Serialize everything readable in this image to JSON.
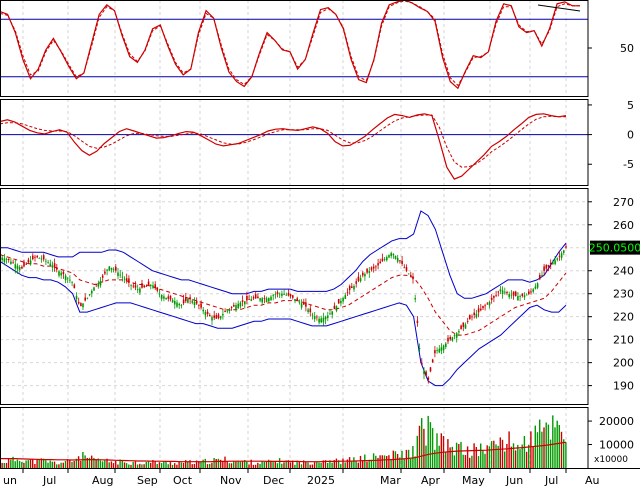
{
  "chart_data": {
    "type": "stock_technical_chart",
    "x_axis": {
      "labels": [
        "un",
        "Jul",
        "Aug",
        "Sep",
        "Oct",
        "Nov",
        "Dec",
        "2025",
        "Mar",
        "Apr",
        "May",
        "Jun",
        "Jul",
        "Au"
      ]
    },
    "panels": [
      {
        "id": "stochastic",
        "type": "line",
        "y_ticks": [
          "50"
        ],
        "ylim": [
          0,
          100
        ],
        "levels": [
          80,
          20
        ],
        "series": [
          {
            "role": "oscillator",
            "color": "#cc0000",
            "values": [
              88,
              85,
              66,
              38,
              18,
              28,
              48,
              60,
              46,
              31,
              18,
              24,
              55,
              85,
              95,
              89,
              63,
              41,
              35,
              48,
              70,
              74,
              52,
              33,
              22,
              28,
              66,
              89,
              81,
              50,
              25,
              15,
              10,
              20,
              45,
              66,
              58,
              48,
              46,
              28,
              38,
              65,
              90,
              92,
              85,
              70,
              38,
              17,
              14,
              38,
              76,
              95,
              98,
              100,
              97,
              92,
              88,
              78,
              40,
              15,
              8,
              26,
              42,
              40,
              46,
              78,
              96,
              94,
              72,
              66,
              68,
              52,
              70,
              96,
              98,
              94,
              94
            ]
          },
          {
            "role": "signal",
            "color": "#cc0000",
            "style": "dashed",
            "values": [
              86,
              84,
              68,
              42,
              22,
              26,
              46,
              58,
              47,
              33,
              20,
              24,
              52,
              82,
              93,
              89,
              65,
              44,
              36,
              47,
              68,
              73,
              54,
              35,
              24,
              28,
              63,
              86,
              81,
              53,
              28,
              17,
              12,
              20,
              43,
              64,
              58,
              49,
              46,
              30,
              38,
              62,
              87,
              91,
              85,
              71,
              41,
              20,
              16,
              37,
              73,
              93,
              97,
              99,
              97,
              93,
              88,
              80,
              44,
              19,
              11,
              25,
              40,
              41,
              46,
              75,
              93,
              93,
              74,
              67,
              68,
              54,
              68,
              93,
              96,
              94,
              94
            ]
          }
        ]
      },
      {
        "id": "macd",
        "type": "line",
        "y_ticks": [
          "5",
          "0",
          "-5"
        ],
        "ylim": [
          -8.5,
          6
        ],
        "levels": [
          0
        ],
        "series": [
          {
            "role": "macd",
            "color": "#cc0000",
            "values": [
              2.2,
              2.5,
              2.1,
              1.4,
              0.7,
              0.3,
              0.1,
              0.5,
              0.8,
              0.4,
              -1.3,
              -2.7,
              -3.5,
              -2.8,
              -1.5,
              -0.5,
              0.5,
              1.0,
              0.6,
              0.2,
              -0.2,
              -0.6,
              -0.5,
              -0.2,
              0.2,
              0.5,
              0.4,
              -0.2,
              -0.9,
              -1.6,
              -1.9,
              -1.7,
              -1.5,
              -1.0,
              -0.5,
              0.0,
              0.6,
              0.9,
              1.0,
              0.8,
              0.7,
              1.0,
              1.3,
              1.0,
              0.2,
              -1.2,
              -1.9,
              -1.8,
              -1.1,
              -0.3,
              0.8,
              1.8,
              2.8,
              3.4,
              3.2,
              2.9,
              3.3,
              3.5,
              3.2,
              -1.0,
              -5.5,
              -7.5,
              -7.0,
              -5.8,
              -4.6,
              -3.4,
              -2.0,
              -1.2,
              -0.3,
              0.8,
              1.8,
              2.9,
              3.4,
              3.5,
              3.2,
              3.0,
              3.2
            ]
          },
          {
            "role": "signal",
            "color": "#cc0000",
            "style": "dashed",
            "values": [
              1.8,
              2.0,
              2.0,
              1.8,
              1.4,
              1.0,
              0.7,
              0.6,
              0.6,
              0.5,
              -0.2,
              -1.1,
              -2.0,
              -2.3,
              -2.1,
              -1.6,
              -0.9,
              -0.2,
              0.2,
              0.2,
              0.0,
              -0.2,
              -0.3,
              -0.3,
              -0.1,
              0.1,
              0.3,
              0.1,
              -0.4,
              -0.9,
              -1.4,
              -1.6,
              -1.6,
              -1.3,
              -0.9,
              -0.4,
              0.1,
              0.5,
              0.8,
              0.8,
              0.8,
              0.8,
              1.0,
              1.0,
              0.7,
              -0.1,
              -0.9,
              -1.4,
              -1.4,
              -1.0,
              -0.3,
              0.6,
              1.5,
              2.3,
              2.8,
              3.0,
              3.2,
              3.3,
              3.3,
              1.2,
              -2.1,
              -4.6,
              -5.5,
              -5.4,
              -4.9,
              -4.0,
              -2.9,
              -2.1,
              -1.2,
              -0.2,
              0.8,
              1.8,
              2.6,
              3.0,
              3.1,
              3.0,
              3.0
            ]
          }
        ]
      },
      {
        "id": "price",
        "type": "candlestick",
        "y_ticks": [
          "270",
          "260",
          "250",
          "240",
          "230",
          "220",
          "210",
          "200",
          "190"
        ],
        "ylim": [
          182,
          276
        ],
        "last_price_label": "250.0500",
        "close": [
          246,
          245,
          243,
          241,
          244,
          246,
          245,
          243,
          240,
          238,
          235,
          224,
          228,
          233,
          236,
          242,
          240,
          237,
          234,
          232,
          233,
          234,
          230,
          228,
          227,
          225,
          228,
          226,
          223,
          220,
          219,
          222,
          224,
          226,
          227,
          228,
          228,
          228,
          230,
          230,
          229,
          227,
          225,
          221,
          219,
          220,
          223,
          227,
          231,
          234,
          238,
          240,
          242,
          245,
          248,
          245,
          240,
          236,
          200,
          192,
          205,
          207,
          210,
          213,
          216,
          220,
          222,
          225,
          228,
          232,
          230,
          229,
          229,
          230,
          234,
          240,
          243,
          246,
          250
        ],
        "ma": [
          247,
          246,
          245,
          244,
          243,
          243,
          242,
          242,
          241,
          240,
          239,
          236,
          235,
          234,
          235,
          236,
          236,
          236,
          235,
          234,
          234,
          233,
          232,
          231,
          230,
          229,
          228,
          227,
          226,
          225,
          224,
          223,
          223,
          223,
          224,
          225,
          225,
          226,
          226,
          227,
          227,
          227,
          226,
          225,
          224,
          223,
          223,
          224,
          225,
          227,
          229,
          231,
          233,
          235,
          237,
          238,
          238,
          237,
          233,
          228,
          222,
          218,
          214,
          212,
          212,
          213,
          214,
          216,
          218,
          220,
          222,
          224,
          225,
          226,
          227,
          228,
          231,
          235,
          239
        ],
        "bb_upper": [
          250,
          250,
          249,
          248,
          248,
          248,
          248,
          247,
          246,
          246,
          246,
          248,
          248,
          248,
          248,
          249,
          249,
          248,
          246,
          244,
          242,
          240,
          239,
          238,
          237,
          236,
          236,
          235,
          234,
          233,
          232,
          231,
          230,
          230,
          230,
          231,
          231,
          232,
          232,
          232,
          232,
          231,
          231,
          231,
          231,
          231,
          232,
          234,
          237,
          240,
          244,
          247,
          249,
          251,
          253,
          254,
          254,
          256,
          266,
          264,
          258,
          248,
          238,
          230,
          228,
          228,
          229,
          230,
          232,
          234,
          236,
          236,
          236,
          235,
          236,
          238,
          243,
          248,
          252
        ],
        "bb_lower": [
          244,
          242,
          240,
          238,
          237,
          237,
          236,
          236,
          235,
          233,
          230,
          222,
          222,
          223,
          224,
          225,
          226,
          226,
          226,
          225,
          224,
          223,
          222,
          221,
          220,
          219,
          218,
          217,
          217,
          216,
          215,
          215,
          215,
          216,
          217,
          218,
          218,
          219,
          219,
          219,
          219,
          218,
          217,
          216,
          216,
          216,
          217,
          218,
          219,
          220,
          221,
          222,
          223,
          224,
          225,
          226,
          225,
          220,
          200,
          192,
          190,
          190,
          193,
          197,
          200,
          203,
          206,
          208,
          210,
          212,
          215,
          218,
          221,
          224,
          225,
          223,
          222,
          222,
          225
        ]
      },
      {
        "id": "volume",
        "type": "bar",
        "y_ticks": [
          "20000",
          "10000"
        ],
        "unit_label": "x10000",
        "ylim": [
          0,
          26000
        ],
        "values": [
          2500,
          3000,
          3500,
          4000,
          3000,
          2800,
          3200,
          2500,
          2000,
          2600,
          3000,
          5000,
          4500,
          3200,
          3000,
          2800,
          2500,
          2600,
          2400,
          2200,
          2300,
          2500,
          2400,
          2200,
          2100,
          2300,
          2500,
          2200,
          2600,
          3000,
          3200,
          3500,
          3000,
          2800,
          2600,
          2400,
          2200,
          2500,
          2800,
          3000,
          2600,
          2400,
          2300,
          2600,
          3200,
          3400,
          3000,
          2800,
          3200,
          3600,
          4000,
          4200,
          4800,
          5000,
          5200,
          5500,
          6000,
          7000,
          15000,
          17000,
          12000,
          10000,
          9000,
          8500,
          7500,
          7000,
          8000,
          8500,
          9000,
          12000,
          11000,
          10000,
          9500,
          12000,
          14000,
          16000,
          18000,
          19000,
          15000
        ],
        "ma": [
          4000,
          4000,
          4000,
          3900,
          3800,
          3700,
          3600,
          3600,
          3500,
          3500,
          3400,
          3500,
          3600,
          3600,
          3500,
          3400,
          3300,
          3200,
          3100,
          3000,
          3000,
          2900,
          2900,
          2800,
          2800,
          2700,
          2700,
          2700,
          2700,
          2700,
          2800,
          2800,
          2900,
          2900,
          2900,
          2900,
          2900,
          2800,
          2800,
          2800,
          2800,
          2800,
          2700,
          2700,
          2700,
          2800,
          2800,
          2900,
          2900,
          3000,
          3100,
          3200,
          3300,
          3500,
          3600,
          3800,
          4000,
          4300,
          5000,
          5800,
          6300,
          6700,
          7000,
          7200,
          7300,
          7400,
          7500,
          7600,
          7800,
          8000,
          8200,
          8500,
          8700,
          9000,
          9300,
          9600,
          10000,
          10500,
          11000
        ]
      }
    ]
  }
}
